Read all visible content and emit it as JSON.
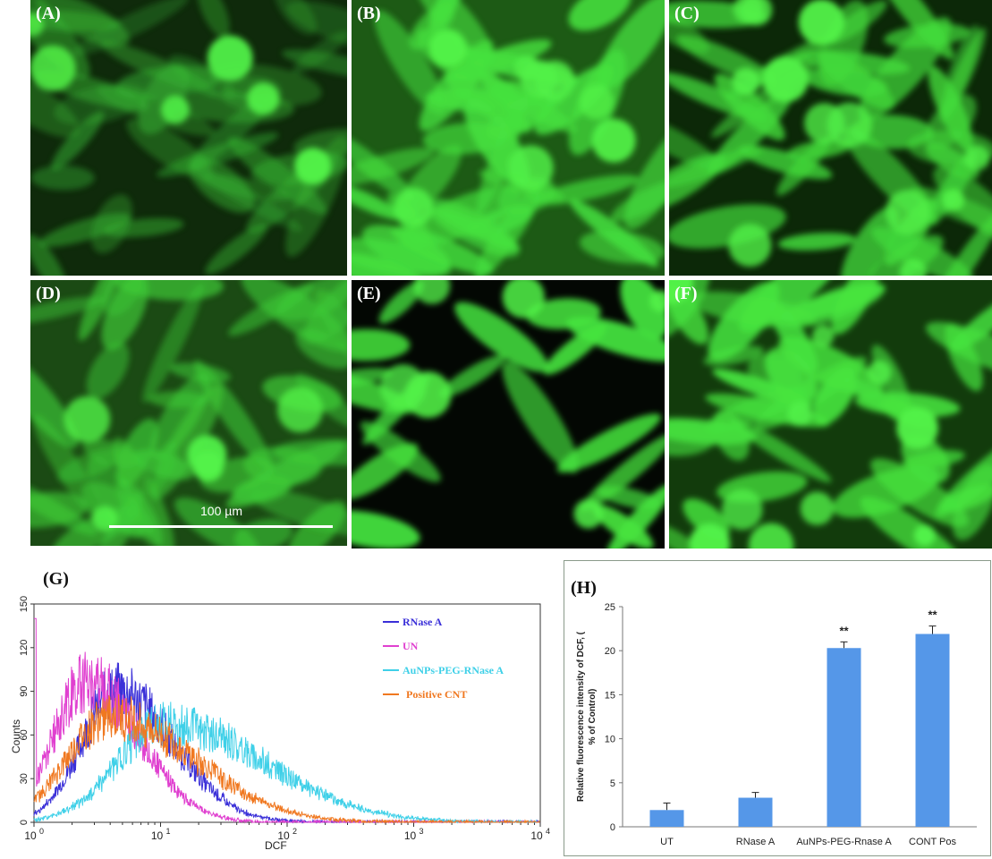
{
  "panels": [
    {
      "id": "A",
      "label": "(A)",
      "intensity": "low"
    },
    {
      "id": "B",
      "label": "(B)",
      "intensity": "high"
    },
    {
      "id": "C",
      "label": "(C)",
      "intensity": "medium"
    },
    {
      "id": "D",
      "label": "(D)",
      "intensity": "medium"
    },
    {
      "id": "E",
      "label": "(E)",
      "intensity": "high-sparse"
    },
    {
      "id": "F",
      "label": "(F)",
      "intensity": "high"
    }
  ],
  "scale_bar": {
    "label": "100 µm"
  },
  "colors": {
    "fluorescence": "#3ee03a",
    "background": "#0a1a06",
    "bar_fill": "#5597e8"
  },
  "chart_data": [
    {
      "id": "G",
      "panel_label": "(G)",
      "type": "line",
      "xscale": "log",
      "xlim": [
        1,
        10000
      ],
      "ylim": [
        0,
        150
      ],
      "xlabel": "DCF",
      "ylabel": "Counts",
      "xticks": [
        "10^0",
        "10^1",
        "10^2",
        "10^3",
        "10^4"
      ],
      "yticks": [
        0,
        30,
        60,
        90,
        120,
        150
      ],
      "legend_position": "top-right",
      "series": [
        {
          "name": "RNase A",
          "color": "#3a2fd8",
          "peak_x": 4.5,
          "peak_y": 90
        },
        {
          "name": "UN",
          "color": "#e040d0",
          "peak_x": 2.6,
          "peak_y": 97
        },
        {
          "name": "AuNPs-PEG-RNase A",
          "color": "#3fd0e8",
          "peak_x": 11,
          "peak_y": 68
        },
        {
          "name": "Positive CNT",
          "color": "#f07820",
          "peak_x": 4,
          "peak_y": 72
        }
      ]
    },
    {
      "id": "H",
      "panel_label": "(H)",
      "type": "bar",
      "categories": [
        "UT",
        "RNase A",
        "AuNPs-PEG-Rnase A",
        "CONT Pos"
      ],
      "values": [
        1.9,
        3.3,
        20.3,
        21.9
      ],
      "errors": [
        0.8,
        0.6,
        0.7,
        0.9
      ],
      "annotations": [
        "",
        "",
        "**",
        "**"
      ],
      "ylabel": "Relative fluorescence intensity of DCF, (% of Control)",
      "ylim": [
        0,
        25
      ],
      "yticks": [
        0,
        5,
        10,
        15,
        20,
        25
      ]
    }
  ]
}
